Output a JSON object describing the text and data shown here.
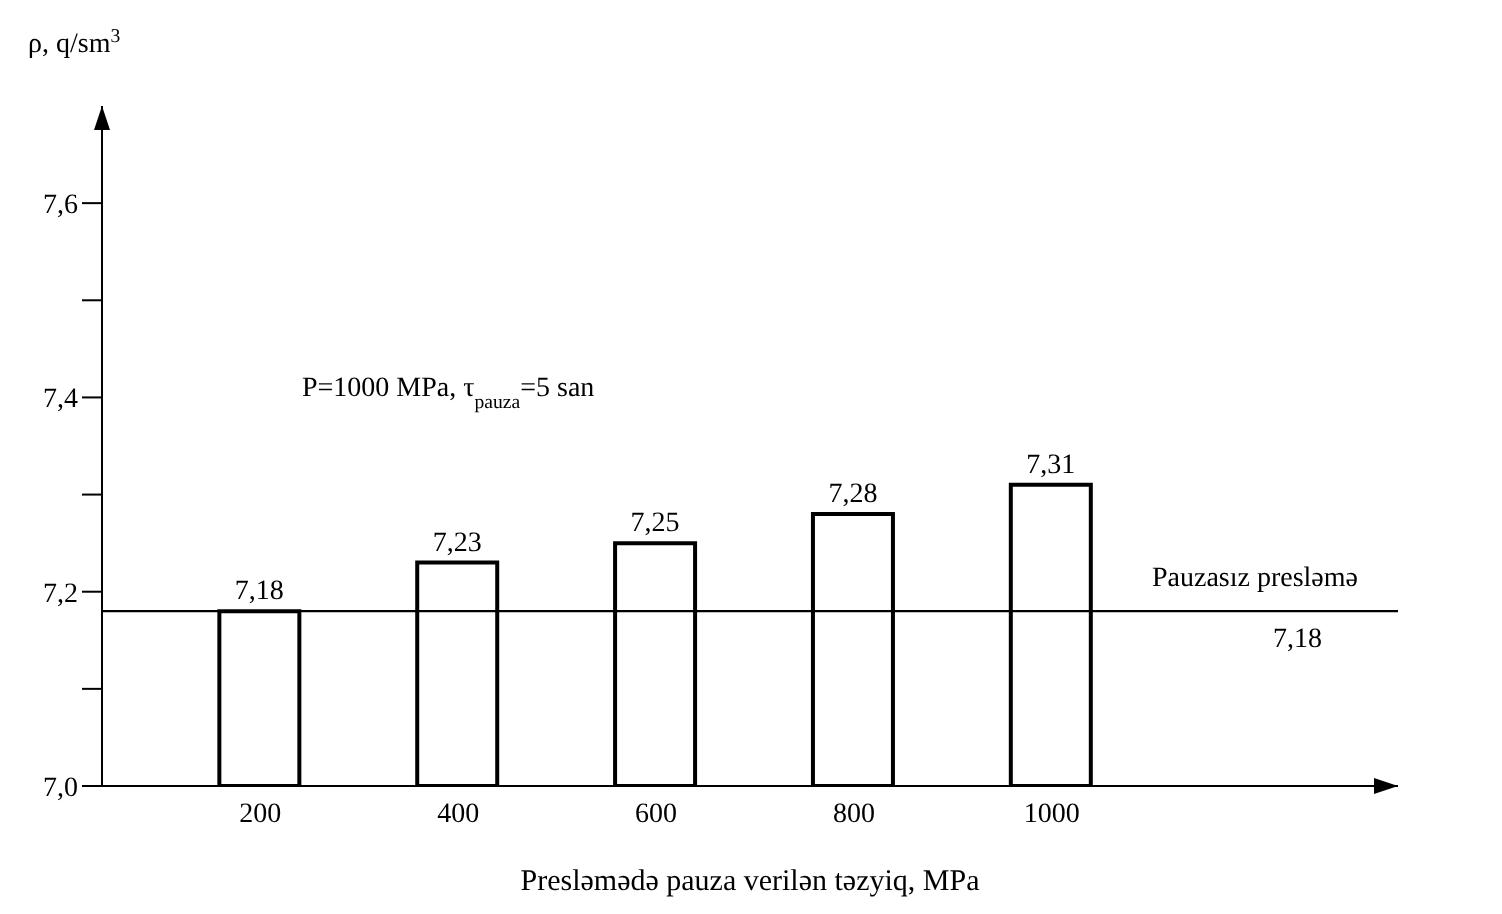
{
  "chart_data": {
    "type": "bar",
    "ylabel": "ρ, q/sm$^{3}$",
    "xlabel": "Presləmədə pauza verilən təzyiq, MPa",
    "x": [
      200,
      400,
      600,
      800,
      1000
    ],
    "values": [
      7.18,
      7.23,
      7.25,
      7.28,
      7.31
    ],
    "value_labels": [
      "7,18",
      "7,23",
      "7,25",
      "7,28",
      "7,31"
    ],
    "color": "#ffffff",
    "xlim": [
      40,
      1350
    ],
    "xticks": [
      200,
      400,
      600,
      800,
      1000
    ],
    "ylim": [
      7.0,
      7.7
    ],
    "yticks": [
      {
        "value": 7.0,
        "label": "7,0"
      },
      {
        "value": 7.1,
        "label": null
      },
      {
        "value": 7.2,
        "label": "7,2"
      },
      {
        "value": 7.3,
        "label": null
      },
      {
        "value": 7.4,
        "label": "7,4"
      },
      {
        "value": 7.5,
        "label": null
      },
      {
        "value": 7.6,
        "label": "7,6"
      }
    ],
    "ref_lines": [
      {
        "axis": "y",
        "value": 7.18,
        "label": "7,18",
        "color": "#000000"
      }
    ],
    "annotations": [
      "P=1000 MPa, τ$_{pauza}$=5 san",
      "Pauzasız presləmə"
    ],
    "grid": false,
    "legend": false
  }
}
